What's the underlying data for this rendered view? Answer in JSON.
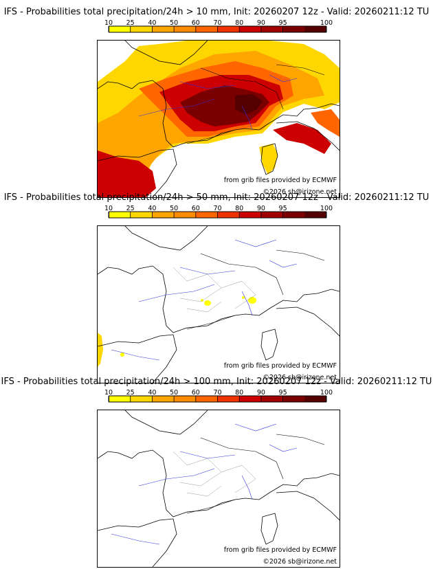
{
  "colorbar": {
    "ticks": [
      "10",
      "25",
      "40",
      "50",
      "60",
      "70",
      "80",
      "90",
      "95",
      "100"
    ],
    "colors": [
      "#ffff00",
      "#ffd700",
      "#ffa500",
      "#ff8c00",
      "#ff6600",
      "#ee3300",
      "#cc0000",
      "#a00000",
      "#7a0000",
      "#550000"
    ]
  },
  "panels": [
    {
      "title": "IFS - Probabilities total precipitation/24h > 10 mm, Init: 20260207 12z - Valid: 20260211:12 TU",
      "threshold_mm": 10
    },
    {
      "title": "IFS - Probabilities total precipitation/24h > 50 mm, Init: 20260207 12z - Valid: 20260211:12 TU",
      "threshold_mm": 50
    },
    {
      "title": "IFS - Probabilities total precipitation/24h > 100 mm, Init: 20260207 12z - Valid: 20260211:12 TU",
      "threshold_mm": 100
    }
  ],
  "credits": {
    "source": "from grib files provided by ECMWF",
    "copyright": "©2026 sb@irizone.net"
  },
  "colors": {
    "coast": "#000000",
    "rivers": "#3333dd",
    "borders": "#999999"
  }
}
